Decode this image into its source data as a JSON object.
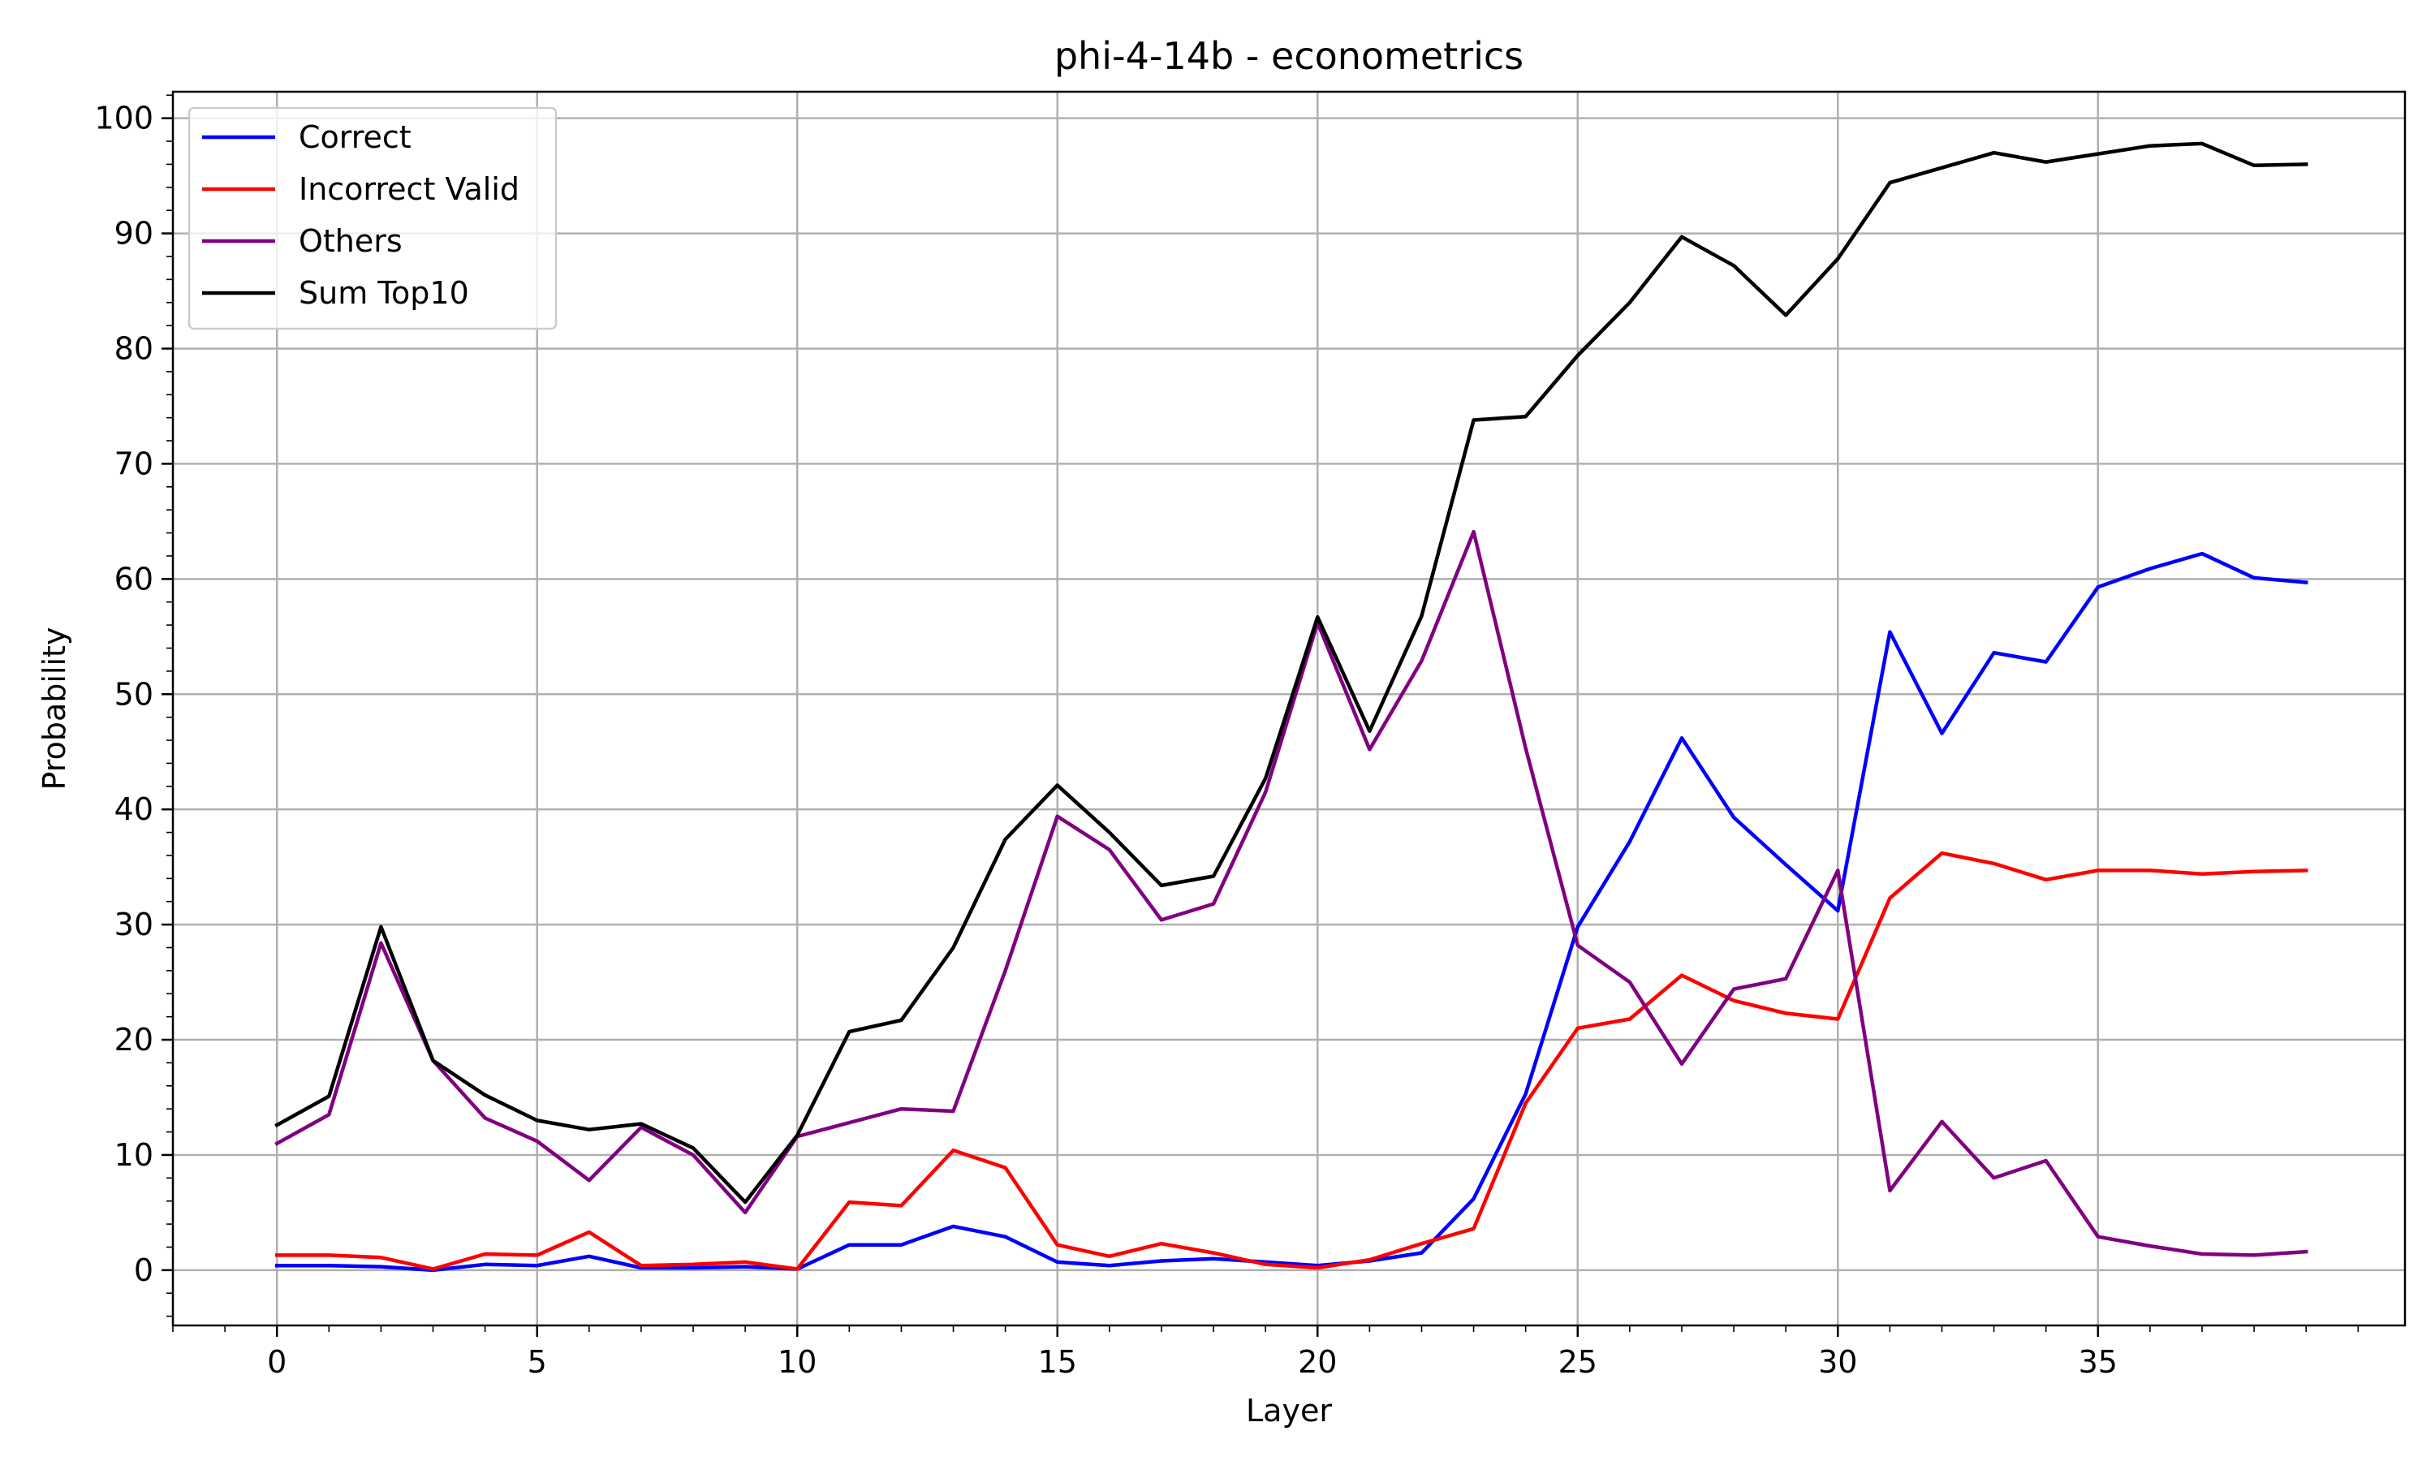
{
  "chart_data": {
    "type": "line",
    "title": "phi-4-14b - econometrics",
    "xlabel": "Layer",
    "ylabel": "Probability",
    "xlim": [
      -2,
      40.9
    ],
    "ylim": [
      -4.8,
      102.3
    ],
    "xticks": [
      0,
      5,
      10,
      15,
      20,
      25,
      30,
      35
    ],
    "yticks": [
      0,
      10,
      20,
      30,
      40,
      50,
      60,
      70,
      80,
      90,
      100
    ],
    "grid": true,
    "legend_position": "top-left",
    "x": [
      0,
      1,
      2,
      3,
      4,
      5,
      6,
      7,
      8,
      9,
      10,
      11,
      12,
      13,
      14,
      15,
      16,
      17,
      18,
      19,
      20,
      21,
      22,
      23,
      24,
      25,
      26,
      27,
      28,
      29,
      30,
      31,
      32,
      33,
      34,
      35,
      36,
      37,
      38,
      39
    ],
    "series": [
      {
        "name": "Correct",
        "color": "#0000ff",
        "values": [
          0.4,
          0.4,
          0.3,
          0.0,
          0.5,
          0.4,
          1.2,
          0.2,
          0.2,
          0.3,
          0.1,
          2.2,
          2.2,
          3.8,
          2.9,
          0.7,
          0.4,
          0.8,
          1.0,
          0.7,
          0.4,
          0.8,
          1.5,
          6.2,
          15.3,
          29.8,
          37.2,
          46.2,
          39.3,
          35.2,
          31.2,
          55.4,
          46.6,
          53.6,
          52.8,
          59.3,
          60.9,
          62.2,
          60.1,
          59.7
        ]
      },
      {
        "name": "Incorrect Valid",
        "color": "#ff0000",
        "values": [
          1.3,
          1.3,
          1.1,
          0.1,
          1.4,
          1.3,
          3.3,
          0.4,
          0.5,
          0.7,
          0.1,
          5.9,
          5.6,
          10.4,
          8.9,
          2.2,
          1.2,
          2.3,
          1.5,
          0.5,
          0.2,
          0.9,
          2.3,
          3.6,
          14.5,
          21.0,
          21.8,
          25.6,
          23.4,
          22.3,
          21.8,
          32.3,
          36.2,
          35.3,
          33.9,
          34.7,
          34.7,
          34.4,
          34.6,
          34.7
        ]
      },
      {
        "name": "Others",
        "color": "#800080",
        "values": [
          11.0,
          13.5,
          28.4,
          18.2,
          13.2,
          11.2,
          7.8,
          12.4,
          10.0,
          5.0,
          11.6,
          12.8,
          14.0,
          13.8,
          26.0,
          39.4,
          36.5,
          30.4,
          31.8,
          41.5,
          56.2,
          45.2,
          52.9,
          64.1,
          45.3,
          28.2,
          25.0,
          17.9,
          24.4,
          25.3,
          34.7,
          6.9,
          12.9,
          8.0,
          9.5,
          2.9,
          2.1,
          1.4,
          1.3,
          1.6
        ]
      },
      {
        "name": "Sum Top10",
        "color": "#000000",
        "values": [
          12.6,
          15.1,
          29.8,
          18.2,
          15.2,
          13.0,
          12.2,
          12.7,
          10.6,
          5.9,
          11.7,
          20.7,
          21.7,
          28.0,
          37.4,
          42.1,
          38.0,
          33.4,
          34.2,
          42.7,
          56.7,
          46.8,
          56.8,
          73.8,
          74.1,
          79.4,
          84.0,
          89.7,
          87.2,
          82.9,
          87.8,
          94.4,
          95.7,
          97.0,
          96.2,
          96.9,
          97.6,
          97.8,
          95.9,
          96.0
        ]
      }
    ]
  }
}
